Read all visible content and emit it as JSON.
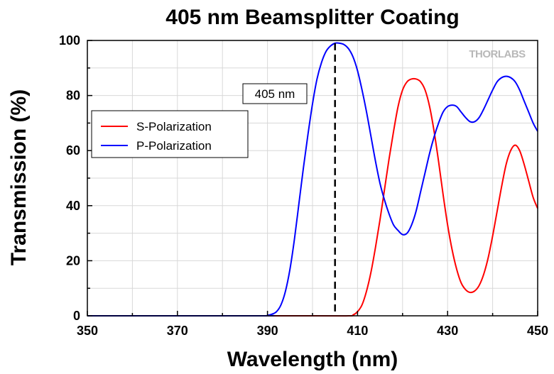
{
  "chart_data": {
    "type": "line",
    "title": "405 nm Beamsplitter Coating",
    "xlabel": "Wavelength (nm)",
    "ylabel": "Transmission (%)",
    "xlim": [
      350,
      450
    ],
    "ylim": [
      0,
      100
    ],
    "x_ticks": [
      "350",
      "370",
      "390",
      "410",
      "430",
      "450"
    ],
    "y_ticks": [
      "0",
      "20",
      "40",
      "60",
      "80",
      "100"
    ],
    "grid": true,
    "legend_position": "upper-left",
    "series": [
      {
        "name": "S-Polarization",
        "color": "#ff0000",
        "points": [
          [
            350,
            0
          ],
          [
            400,
            0
          ],
          [
            408,
            0
          ],
          [
            409,
            0.3
          ],
          [
            410,
            1.5
          ],
          [
            411,
            4
          ],
          [
            412,
            9
          ],
          [
            413,
            16
          ],
          [
            414,
            25
          ],
          [
            415,
            35
          ],
          [
            416,
            46
          ],
          [
            417,
            57
          ],
          [
            418,
            67
          ],
          [
            419,
            76
          ],
          [
            420,
            82
          ],
          [
            421,
            85
          ],
          [
            422,
            86
          ],
          [
            423,
            86
          ],
          [
            424,
            85
          ],
          [
            425,
            82
          ],
          [
            426,
            76
          ],
          [
            427,
            67
          ],
          [
            428,
            56
          ],
          [
            429,
            44
          ],
          [
            430,
            33
          ],
          [
            431,
            24
          ],
          [
            432,
            17
          ],
          [
            433,
            12
          ],
          [
            434,
            9.5
          ],
          [
            435,
            8.5
          ],
          [
            436,
            9
          ],
          [
            437,
            11
          ],
          [
            438,
            15
          ],
          [
            439,
            21
          ],
          [
            440,
            29
          ],
          [
            441,
            38
          ],
          [
            442,
            47
          ],
          [
            443,
            55
          ],
          [
            444,
            60
          ],
          [
            445,
            62
          ],
          [
            446,
            60
          ],
          [
            447,
            55
          ],
          [
            448,
            49
          ],
          [
            449,
            43
          ],
          [
            450,
            39
          ]
        ]
      },
      {
        "name": "P-Polarization",
        "color": "#0000ff",
        "points": [
          [
            350,
            0
          ],
          [
            388,
            0
          ],
          [
            390,
            0.2
          ],
          [
            391,
            0.6
          ],
          [
            392,
            1.5
          ],
          [
            393,
            4
          ],
          [
            394,
            9
          ],
          [
            395,
            17
          ],
          [
            396,
            28
          ],
          [
            397,
            41
          ],
          [
            398,
            54
          ],
          [
            399,
            66
          ],
          [
            400,
            77
          ],
          [
            401,
            86
          ],
          [
            402,
            92
          ],
          [
            403,
            96
          ],
          [
            404,
            98
          ],
          [
            405,
            99
          ],
          [
            406,
            99
          ],
          [
            407,
            98.5
          ],
          [
            408,
            97
          ],
          [
            409,
            94
          ],
          [
            410,
            89
          ],
          [
            411,
            82
          ],
          [
            412,
            74
          ],
          [
            413,
            65
          ],
          [
            414,
            56
          ],
          [
            415,
            48
          ],
          [
            416,
            42
          ],
          [
            417,
            37
          ],
          [
            418,
            33
          ],
          [
            419,
            31
          ],
          [
            420,
            29.5
          ],
          [
            421,
            30
          ],
          [
            422,
            33
          ],
          [
            423,
            38
          ],
          [
            424,
            45
          ],
          [
            425,
            52
          ],
          [
            426,
            59
          ],
          [
            427,
            65
          ],
          [
            428,
            70
          ],
          [
            429,
            74
          ],
          [
            430,
            76
          ],
          [
            431,
            76.5
          ],
          [
            432,
            76
          ],
          [
            433,
            74
          ],
          [
            434,
            72
          ],
          [
            435,
            70.5
          ],
          [
            436,
            70.5
          ],
          [
            437,
            72
          ],
          [
            438,
            75
          ],
          [
            439,
            78.5
          ],
          [
            440,
            82
          ],
          [
            441,
            85
          ],
          [
            442,
            86.5
          ],
          [
            443,
            87
          ],
          [
            444,
            86.5
          ],
          [
            445,
            85
          ],
          [
            446,
            82
          ],
          [
            447,
            78
          ],
          [
            448,
            74
          ],
          [
            449,
            70
          ],
          [
            450,
            67
          ]
        ]
      }
    ],
    "annotations": [
      {
        "label": "405 nm",
        "type": "vertical-dashed-line",
        "x": 405
      }
    ]
  },
  "brand": {
    "name": "THORLABS"
  }
}
